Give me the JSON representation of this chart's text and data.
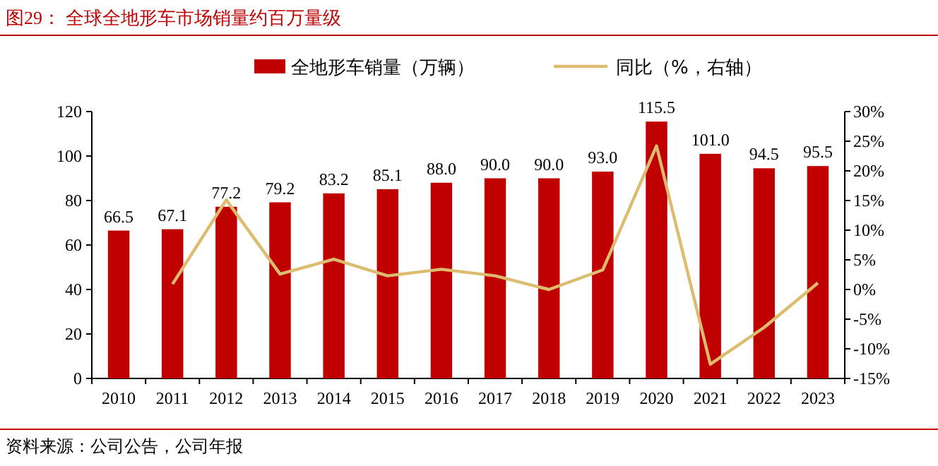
{
  "chart_data": {
    "type": "bar",
    "title": "图29：  全球全地形车市场销量约百万量级",
    "categories": [
      "2010",
      "2011",
      "2012",
      "2013",
      "2014",
      "2015",
      "2016",
      "2017",
      "2018",
      "2019",
      "2020",
      "2021",
      "2022",
      "2023"
    ],
    "series": [
      {
        "name": "全地形车销量（万辆）",
        "color": "#c00000",
        "values": [
          66.5,
          67.1,
          77.2,
          79.2,
          83.2,
          85.1,
          88.0,
          90.0,
          90.0,
          93.0,
          115.5,
          101.0,
          94.5,
          95.5
        ],
        "value_labels": [
          "66.5",
          "67.1",
          "77.2",
          "79.2",
          "83.2",
          "85.1",
          "88.0",
          "90.0",
          "90.0",
          "93.0",
          "115.5",
          "101.0",
          "94.5",
          "95.5"
        ]
      },
      {
        "name": "同比（%，右轴）",
        "type": "line",
        "axis": "y2",
        "color": "#dcbc6e",
        "values": [
          null,
          0.9,
          15.1,
          2.6,
          5.1,
          2.3,
          3.4,
          2.3,
          0.0,
          3.3,
          24.2,
          -12.6,
          -6.4,
          1.1
        ]
      }
    ],
    "ylim": [
      0,
      120
    ],
    "yticks": [
      0,
      20,
      40,
      60,
      80,
      100,
      120
    ],
    "y2lim": [
      -15,
      30
    ],
    "y2ticks": [
      {
        "value": -15,
        "label": "-15%"
      },
      {
        "value": -10,
        "label": "-10%"
      },
      {
        "value": -5,
        "label": "-5%"
      },
      {
        "value": 0,
        "label": "0%"
      },
      {
        "value": 5,
        "label": "5%"
      },
      {
        "value": 10,
        "label": "10%"
      },
      {
        "value": 15,
        "label": "15%"
      },
      {
        "value": 20,
        "label": "20%"
      },
      {
        "value": 25,
        "label": "25%"
      },
      {
        "value": 30,
        "label": "30%"
      }
    ],
    "legend": "top",
    "grid": false,
    "marker": "none",
    "annotations": [
      "资料来源：公司公告，公司年报"
    ]
  }
}
